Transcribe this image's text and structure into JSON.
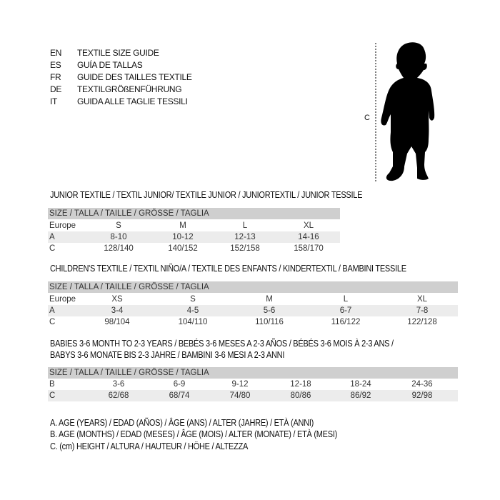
{
  "languages": [
    {
      "code": "EN",
      "title": "TEXTILE SIZE GUIDE"
    },
    {
      "code": "ES",
      "title": "GUÍA DE TALLAS"
    },
    {
      "code": "FR",
      "title": "GUIDE DES TAILLES TEXTILE"
    },
    {
      "code": "DE",
      "title": "TEXTILGRÖßENFÜHRUNG"
    },
    {
      "code": "IT",
      "title": "GUIDA ALLE TAGLIE TESSILI"
    }
  ],
  "figure": {
    "measure_label": "C"
  },
  "size_header": "SIZE / TALLA / TAILLE / GRÖSSE / TAGLIA",
  "junior": {
    "title": "JUNIOR TEXTILE / TEXTIL JUNIOR/ TEXTILE JUNIOR / JUNIORTEXTIL / JUNIOR TESSILE",
    "rows": [
      {
        "label": "Europe",
        "values": [
          "S",
          "M",
          "L",
          "XL"
        ]
      },
      {
        "label": "A",
        "values": [
          "8-10",
          "10-12",
          "12-13",
          "14-16"
        ]
      },
      {
        "label": "C",
        "values": [
          "128/140",
          "140/152",
          "152/158",
          "158/170"
        ]
      }
    ]
  },
  "children": {
    "title": "CHILDREN'S TEXTILE / TEXTIL NIÑO/A / TEXTILE DES ENFANTS / KINDERTEXTIL / BAMBINI TESSILE",
    "rows": [
      {
        "label": "Europe",
        "values": [
          "XS",
          "S",
          "M",
          "L",
          "XL"
        ]
      },
      {
        "label": "A",
        "values": [
          "3-4",
          "4-5",
          "5-6",
          "6-7",
          "7-8"
        ]
      },
      {
        "label": "C",
        "values": [
          "98/104",
          "104/110",
          "110/116",
          "116/122",
          "122/128"
        ]
      }
    ]
  },
  "babies": {
    "title_line1": "BABIES 3-6 MONTH TO 2-3 YEARS / BEBÉS 3-6 MESES A 2-3 AÑOS / BÉBÉS 3-6 MOIS À 2-3 ANS /",
    "title_line2": "BABYS 3-6 MONATE BIS 2-3 JAHRE / BAMBINI 3-6 MESI A 2-3 ANNI",
    "rows": [
      {
        "label": "B",
        "values": [
          "3-6",
          "6-9",
          "9-12",
          "12-18",
          "18-24",
          "24-36"
        ]
      },
      {
        "label": "C",
        "values": [
          "62/68",
          "68/74",
          "74/80",
          "80/86",
          "86/92",
          "92/98"
        ]
      }
    ]
  },
  "legend": [
    "A. AGE (YEARS) / EDAD (AÑOS) / ÂGE (ANS) / ALTER (JAHRE) / ETÀ (ANNI)",
    "B. AGE (MONTHS) / EDAD (MESES) / ÂGE (MOIS) / ALTER (MONATE) / ETÀ (MESI)",
    "C. (cm) HEIGHT / ALTURA / HAUTEUR / HÖHE / ALTEZZA"
  ]
}
